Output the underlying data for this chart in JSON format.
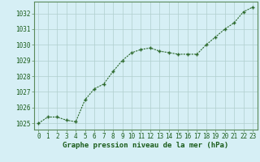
{
  "x": [
    0,
    1,
    2,
    3,
    4,
    5,
    6,
    7,
    8,
    9,
    10,
    11,
    12,
    13,
    14,
    15,
    16,
    17,
    18,
    19,
    20,
    21,
    22,
    23
  ],
  "y": [
    1025.0,
    1025.4,
    1025.4,
    1025.2,
    1025.1,
    1026.5,
    1027.2,
    1027.5,
    1028.3,
    1029.0,
    1029.5,
    1029.7,
    1029.8,
    1029.6,
    1029.5,
    1029.4,
    1029.4,
    1029.4,
    1030.0,
    1030.5,
    1031.0,
    1031.4,
    1032.1,
    1032.4
  ],
  "ylim": [
    1024.6,
    1032.75
  ],
  "yticks": [
    1025,
    1026,
    1027,
    1028,
    1029,
    1030,
    1031,
    1032
  ],
  "xticks": [
    0,
    1,
    2,
    3,
    4,
    5,
    6,
    7,
    8,
    9,
    10,
    11,
    12,
    13,
    14,
    15,
    16,
    17,
    18,
    19,
    20,
    21,
    22,
    23
  ],
  "line_color": "#2d6a2d",
  "marker_color": "#2d6a2d",
  "bg_color": "#d6eff5",
  "grid_color": "#b0cece",
  "xlabel": "Graphe pression niveau de la mer (hPa)",
  "xlabel_color": "#1a5c1a",
  "tick_color": "#1a5c1a",
  "spine_color": "#5a8a5a",
  "marker_size": 3.5,
  "line_width": 0.8,
  "tick_fontsize": 5.5,
  "xlabel_fontsize": 6.5
}
